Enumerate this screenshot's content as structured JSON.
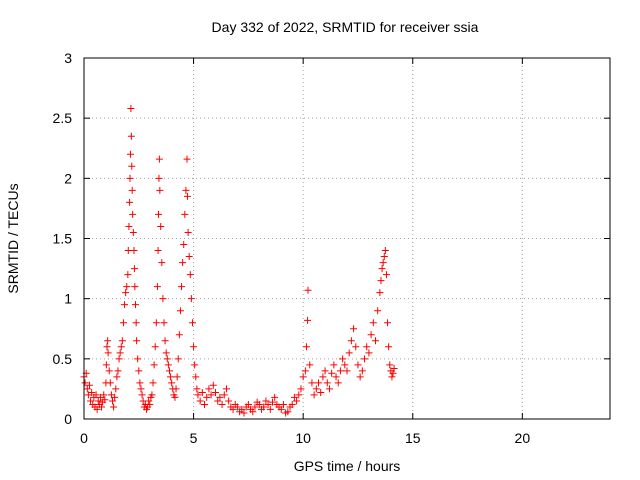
{
  "chart_data": {
    "type": "scatter",
    "title": "Day 332 of 2022, SRMTID for receiver ssia",
    "xlabel": "GPS time / hours",
    "ylabel": "SRMTID / TECUs",
    "xlim": [
      0,
      24
    ],
    "ylim": [
      0,
      3
    ],
    "xticks": [
      0,
      5,
      10,
      15,
      20
    ],
    "yticks": [
      0,
      0.5,
      1,
      1.5,
      2,
      2.5,
      3
    ],
    "xtick_labels": [
      "0",
      "5",
      "10",
      "15",
      "20"
    ],
    "ytick_labels": [
      "0",
      "0.5",
      "1",
      "1.5",
      "2",
      "2.5",
      "3"
    ],
    "grid": true,
    "marker": "+",
    "color": "#ff0000",
    "series": [
      {
        "name": "SRMTID",
        "points": [
          [
            0.0,
            0.35
          ],
          [
            0.05,
            0.3
          ],
          [
            0.1,
            0.38
          ],
          [
            0.15,
            0.25
          ],
          [
            0.2,
            0.2
          ],
          [
            0.25,
            0.28
          ],
          [
            0.3,
            0.15
          ],
          [
            0.35,
            0.22
          ],
          [
            0.4,
            0.12
          ],
          [
            0.45,
            0.18
          ],
          [
            0.5,
            0.1
          ],
          [
            0.55,
            0.2
          ],
          [
            0.6,
            0.08
          ],
          [
            0.65,
            0.15
          ],
          [
            0.7,
            0.12
          ],
          [
            0.75,
            0.18
          ],
          [
            0.8,
            0.1
          ],
          [
            0.85,
            0.14
          ],
          [
            0.9,
            0.2
          ],
          [
            0.95,
            0.16
          ],
          [
            1.0,
            0.3
          ],
          [
            1.02,
            0.45
          ],
          [
            1.05,
            0.6
          ],
          [
            1.08,
            0.65
          ],
          [
            1.1,
            0.55
          ],
          [
            1.15,
            0.4
          ],
          [
            1.2,
            0.3
          ],
          [
            1.25,
            0.2
          ],
          [
            1.3,
            0.15
          ],
          [
            1.35,
            0.1
          ],
          [
            1.4,
            0.18
          ],
          [
            1.45,
            0.25
          ],
          [
            1.5,
            0.35
          ],
          [
            1.55,
            0.4
          ],
          [
            1.6,
            0.5
          ],
          [
            1.65,
            0.55
          ],
          [
            1.7,
            0.6
          ],
          [
            1.75,
            0.65
          ],
          [
            1.8,
            0.8
          ],
          [
            1.85,
            0.95
          ],
          [
            1.9,
            1.05
          ],
          [
            1.95,
            1.1
          ],
          [
            2.0,
            1.2
          ],
          [
            2.02,
            1.4
          ],
          [
            2.05,
            1.6
          ],
          [
            2.08,
            1.8
          ],
          [
            2.1,
            2.0
          ],
          [
            2.12,
            2.2
          ],
          [
            2.14,
            2.58
          ],
          [
            2.16,
            2.35
          ],
          [
            2.18,
            2.1
          ],
          [
            2.2,
            1.9
          ],
          [
            2.22,
            1.7
          ],
          [
            2.25,
            1.55
          ],
          [
            2.28,
            1.4
          ],
          [
            2.3,
            1.25
          ],
          [
            2.32,
            1.1
          ],
          [
            2.35,
            0.95
          ],
          [
            2.38,
            0.8
          ],
          [
            2.4,
            0.65
          ],
          [
            2.45,
            0.5
          ],
          [
            2.5,
            0.4
          ],
          [
            2.55,
            0.3
          ],
          [
            2.6,
            0.25
          ],
          [
            2.65,
            0.2
          ],
          [
            2.7,
            0.15
          ],
          [
            2.75,
            0.1
          ],
          [
            2.8,
            0.12
          ],
          [
            2.85,
            0.08
          ],
          [
            2.9,
            0.1
          ],
          [
            2.95,
            0.15
          ],
          [
            3.0,
            0.12
          ],
          [
            3.05,
            0.18
          ],
          [
            3.1,
            0.2
          ],
          [
            3.15,
            0.3
          ],
          [
            3.2,
            0.45
          ],
          [
            3.25,
            0.6
          ],
          [
            3.3,
            0.8
          ],
          [
            3.35,
            1.1
          ],
          [
            3.38,
            1.4
          ],
          [
            3.4,
            1.7
          ],
          [
            3.42,
            2.0
          ],
          [
            3.44,
            2.16
          ],
          [
            3.46,
            1.9
          ],
          [
            3.5,
            1.6
          ],
          [
            3.55,
            1.3
          ],
          [
            3.6,
            1.0
          ],
          [
            3.65,
            0.8
          ],
          [
            3.7,
            0.65
          ],
          [
            3.75,
            0.55
          ],
          [
            3.8,
            0.5
          ],
          [
            3.85,
            0.45
          ],
          [
            3.9,
            0.4
          ],
          [
            3.95,
            0.35
          ],
          [
            4.0,
            0.3
          ],
          [
            4.05,
            0.25
          ],
          [
            4.1,
            0.2
          ],
          [
            4.15,
            0.18
          ],
          [
            4.2,
            0.25
          ],
          [
            4.25,
            0.35
          ],
          [
            4.3,
            0.5
          ],
          [
            4.35,
            0.7
          ],
          [
            4.4,
            0.9
          ],
          [
            4.45,
            1.1
          ],
          [
            4.5,
            1.3
          ],
          [
            4.55,
            1.45
          ],
          [
            4.6,
            1.7
          ],
          [
            4.65,
            1.9
          ],
          [
            4.7,
            2.16
          ],
          [
            4.72,
            1.85
          ],
          [
            4.75,
            1.55
          ],
          [
            4.8,
            1.35
          ],
          [
            4.85,
            1.2
          ],
          [
            4.9,
            1.0
          ],
          [
            4.95,
            0.8
          ],
          [
            5.0,
            0.6
          ],
          [
            5.05,
            0.45
          ],
          [
            5.1,
            0.35
          ],
          [
            5.15,
            0.25
          ],
          [
            5.2,
            0.2
          ],
          [
            5.3,
            0.15
          ],
          [
            5.4,
            0.22
          ],
          [
            5.5,
            0.12
          ],
          [
            5.6,
            0.18
          ],
          [
            5.7,
            0.25
          ],
          [
            5.8,
            0.2
          ],
          [
            5.9,
            0.28
          ],
          [
            6.0,
            0.22
          ],
          [
            6.1,
            0.15
          ],
          [
            6.2,
            0.18
          ],
          [
            6.3,
            0.12
          ],
          [
            6.4,
            0.2
          ],
          [
            6.5,
            0.25
          ],
          [
            6.6,
            0.15
          ],
          [
            6.7,
            0.1
          ],
          [
            6.8,
            0.08
          ],
          [
            6.9,
            0.12
          ],
          [
            7.0,
            0.1
          ],
          [
            7.1,
            0.06
          ],
          [
            7.2,
            0.08
          ],
          [
            7.3,
            0.05
          ],
          [
            7.4,
            0.1
          ],
          [
            7.5,
            0.12
          ],
          [
            7.6,
            0.08
          ],
          [
            7.7,
            0.06
          ],
          [
            7.8,
            0.1
          ],
          [
            7.9,
            0.14
          ],
          [
            8.0,
            0.12
          ],
          [
            8.1,
            0.08
          ],
          [
            8.2,
            0.1
          ],
          [
            8.3,
            0.15
          ],
          [
            8.4,
            0.12
          ],
          [
            8.5,
            0.08
          ],
          [
            8.6,
            0.14
          ],
          [
            8.7,
            0.18
          ],
          [
            8.8,
            0.12
          ],
          [
            8.9,
            0.1
          ],
          [
            9.0,
            0.08
          ],
          [
            9.1,
            0.12
          ],
          [
            9.2,
            0.05
          ],
          [
            9.3,
            0.06
          ],
          [
            9.4,
            0.1
          ],
          [
            9.5,
            0.12
          ],
          [
            9.6,
            0.18
          ],
          [
            9.7,
            0.15
          ],
          [
            9.8,
            0.2
          ],
          [
            9.9,
            0.25
          ],
          [
            10.0,
            0.35
          ],
          [
            10.1,
            0.4
          ],
          [
            10.15,
            0.6
          ],
          [
            10.2,
            0.82
          ],
          [
            10.22,
            1.07
          ],
          [
            10.3,
            0.45
          ],
          [
            10.4,
            0.3
          ],
          [
            10.5,
            0.2
          ],
          [
            10.6,
            0.25
          ],
          [
            10.7,
            0.3
          ],
          [
            10.8,
            0.22
          ],
          [
            10.9,
            0.35
          ],
          [
            11.0,
            0.4
          ],
          [
            11.1,
            0.3
          ],
          [
            11.2,
            0.25
          ],
          [
            11.3,
            0.38
          ],
          [
            11.4,
            0.45
          ],
          [
            11.5,
            0.35
          ],
          [
            11.6,
            0.3
          ],
          [
            11.7,
            0.4
          ],
          [
            11.8,
            0.5
          ],
          [
            11.9,
            0.45
          ],
          [
            12.0,
            0.4
          ],
          [
            12.1,
            0.55
          ],
          [
            12.2,
            0.65
          ],
          [
            12.3,
            0.75
          ],
          [
            12.4,
            0.6
          ],
          [
            12.5,
            0.45
          ],
          [
            12.6,
            0.35
          ],
          [
            12.7,
            0.4
          ],
          [
            12.8,
            0.5
          ],
          [
            12.9,
            0.6
          ],
          [
            13.0,
            0.55
          ],
          [
            13.1,
            0.7
          ],
          [
            13.2,
            0.8
          ],
          [
            13.3,
            0.65
          ],
          [
            13.4,
            0.9
          ],
          [
            13.5,
            1.05
          ],
          [
            13.55,
            1.15
          ],
          [
            13.6,
            1.25
          ],
          [
            13.65,
            1.3
          ],
          [
            13.7,
            1.35
          ],
          [
            13.75,
            1.4
          ],
          [
            13.8,
            1.2
          ],
          [
            13.85,
            0.8
          ],
          [
            13.9,
            0.6
          ],
          [
            13.95,
            0.45
          ],
          [
            14.0,
            0.4
          ],
          [
            14.05,
            0.35
          ],
          [
            14.1,
            0.38
          ],
          [
            14.15,
            0.42
          ]
        ]
      }
    ]
  }
}
